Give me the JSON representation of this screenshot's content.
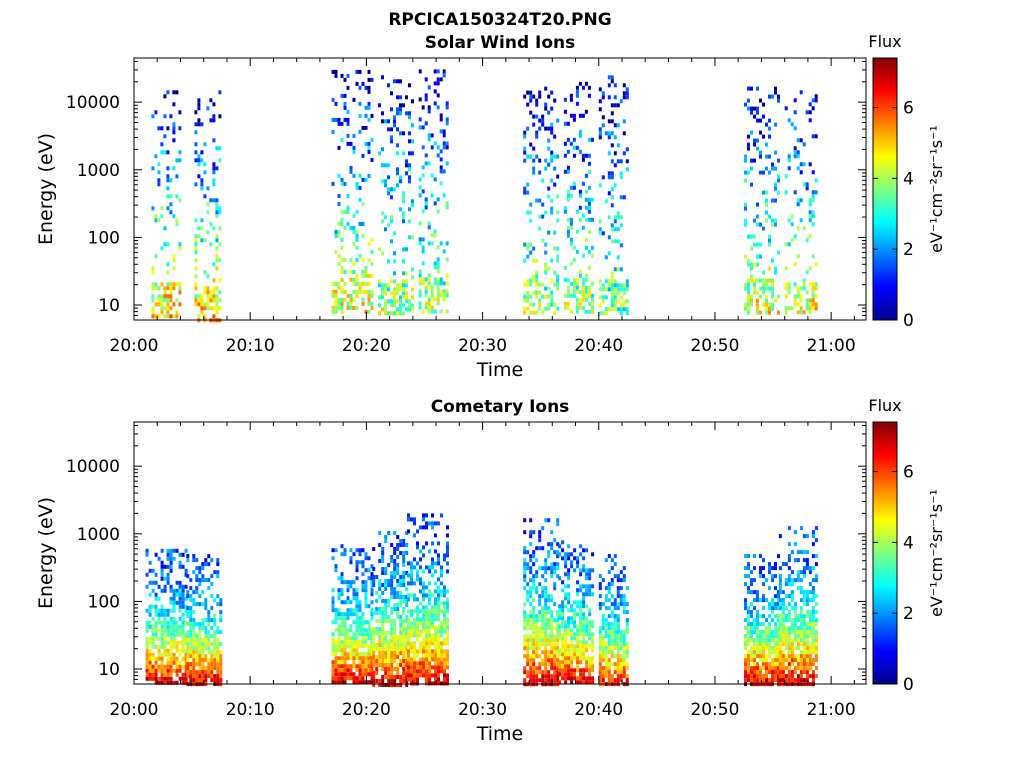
{
  "figure_title": "RPCICA150324T20.PNG",
  "chart_data": [
    {
      "type": "heatmap",
      "title": "Solar Wind Ions",
      "xlabel": "Time",
      "ylabel": "Energy (eV)",
      "x_ticks": [
        "20:00",
        "20:10",
        "20:20",
        "20:30",
        "20:40",
        "20:50",
        "21:00"
      ],
      "x_range_minutes": [
        0,
        63
      ],
      "y_scale": "log",
      "y_ticks": [
        10,
        100,
        1000,
        10000
      ],
      "y_range": [
        6,
        45000
      ],
      "colorbar": {
        "label": "Flux",
        "unit": "eV⁻¹cm⁻²sr⁻¹s⁻¹",
        "range": [
          0,
          7.4
        ],
        "ticks": [
          0,
          2,
          4,
          6
        ],
        "colormap": "jet"
      },
      "grid": false,
      "bursts": [
        {
          "t_start": 1.5,
          "t_end": 4.0,
          "e_min": 7,
          "e_max": 15000,
          "peak_flux": 5.0
        },
        {
          "t_start": 5.2,
          "t_end": 7.5,
          "e_min": 6,
          "e_max": 15000,
          "peak_flux": 5.0
        },
        {
          "t_start": 17.0,
          "t_end": 20.5,
          "e_min": 8,
          "e_max": 30000,
          "peak_flux": 4.5
        },
        {
          "t_start": 21.0,
          "t_end": 24.0,
          "e_min": 8,
          "e_max": 25000,
          "peak_flux": 4.0
        },
        {
          "t_start": 24.5,
          "t_end": 27.0,
          "e_min": 8,
          "e_max": 35000,
          "peak_flux": 4.0
        },
        {
          "t_start": 33.5,
          "t_end": 36.5,
          "e_min": 8,
          "e_max": 17000,
          "peak_flux": 4.0
        },
        {
          "t_start": 37.0,
          "t_end": 39.5,
          "e_min": 8,
          "e_max": 20000,
          "peak_flux": 4.0
        },
        {
          "t_start": 40.0,
          "t_end": 42.5,
          "e_min": 8,
          "e_max": 25000,
          "peak_flux": 3.5
        },
        {
          "t_start": 52.5,
          "t_end": 55.5,
          "e_min": 8,
          "e_max": 17000,
          "peak_flux": 4.5
        },
        {
          "t_start": 56.0,
          "t_end": 58.8,
          "e_min": 8,
          "e_max": 15000,
          "peak_flux": 4.5
        }
      ]
    },
    {
      "type": "heatmap",
      "title": "Cometary Ions",
      "xlabel": "Time",
      "ylabel": "Energy (eV)",
      "x_ticks": [
        "20:00",
        "20:10",
        "20:20",
        "20:30",
        "20:40",
        "20:50",
        "21:00"
      ],
      "x_range_minutes": [
        0,
        63
      ],
      "y_scale": "log",
      "y_ticks": [
        10,
        100,
        1000,
        10000
      ],
      "y_range": [
        6,
        45000
      ],
      "colorbar": {
        "label": "Flux",
        "unit": "eV⁻¹cm⁻²sr⁻¹s⁻¹",
        "range": [
          0,
          7.4
        ],
        "ticks": [
          0,
          2,
          4,
          6
        ],
        "colormap": "jet"
      },
      "grid": false,
      "bursts": [
        {
          "t_start": 1.0,
          "t_end": 4.5,
          "e_min": 6,
          "e_max": 600,
          "peak_flux": 7.0
        },
        {
          "t_start": 4.5,
          "t_end": 7.5,
          "e_min": 6,
          "e_max": 500,
          "peak_flux": 7.0
        },
        {
          "t_start": 17.0,
          "t_end": 20.5,
          "e_min": 6,
          "e_max": 700,
          "peak_flux": 7.0
        },
        {
          "t_start": 20.5,
          "t_end": 23.5,
          "e_min": 6,
          "e_max": 1100,
          "peak_flux": 7.0
        },
        {
          "t_start": 23.5,
          "t_end": 27.0,
          "e_min": 6,
          "e_max": 2000,
          "peak_flux": 7.0
        },
        {
          "t_start": 33.5,
          "t_end": 36.5,
          "e_min": 6,
          "e_max": 1700,
          "peak_flux": 7.0
        },
        {
          "t_start": 36.5,
          "t_end": 39.5,
          "e_min": 6,
          "e_max": 800,
          "peak_flux": 7.0
        },
        {
          "t_start": 40.0,
          "t_end": 42.5,
          "e_min": 6,
          "e_max": 500,
          "peak_flux": 6.5
        },
        {
          "t_start": 52.5,
          "t_end": 55.5,
          "e_min": 6,
          "e_max": 500,
          "peak_flux": 7.0
        },
        {
          "t_start": 55.5,
          "t_end": 58.8,
          "e_min": 6,
          "e_max": 1300,
          "peak_flux": 7.0
        }
      ]
    }
  ]
}
